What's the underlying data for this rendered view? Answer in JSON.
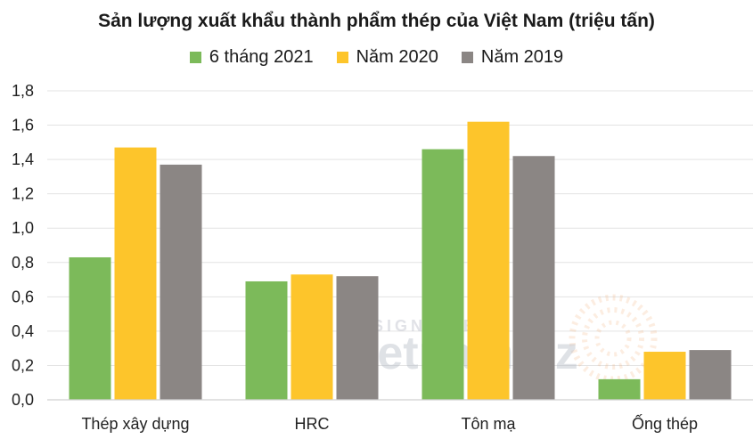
{
  "chart_data": {
    "type": "bar",
    "title": "Sản lượng xuất khẩu thành phẩm thép của Việt Nam (triệu tấn)",
    "categories": [
      "Thép xây dựng",
      "HRC",
      "Tôn mạ",
      "Ống thép"
    ],
    "series": [
      {
        "name": "6 tháng 2021",
        "color": "#7cba5a",
        "values": [
          0.83,
          0.69,
          1.46,
          0.12
        ]
      },
      {
        "name": "Năm 2020",
        "color": "#fdc52b",
        "values": [
          1.47,
          0.73,
          1.62,
          0.28
        ]
      },
      {
        "name": "Năm 2019",
        "color": "#8b8684",
        "values": [
          1.37,
          0.72,
          1.42,
          0.29
        ]
      }
    ],
    "ylim": [
      0,
      1.8
    ],
    "yticks": [
      "0,0",
      "0,2",
      "0,4",
      "0,6",
      "0,8",
      "1,0",
      "1,2",
      "1,4",
      "1,6",
      "1,8"
    ],
    "grid": true,
    "legend_position": "top",
    "watermark": {
      "top": "DESIGNED BY",
      "brand": "vietnambiz"
    }
  }
}
